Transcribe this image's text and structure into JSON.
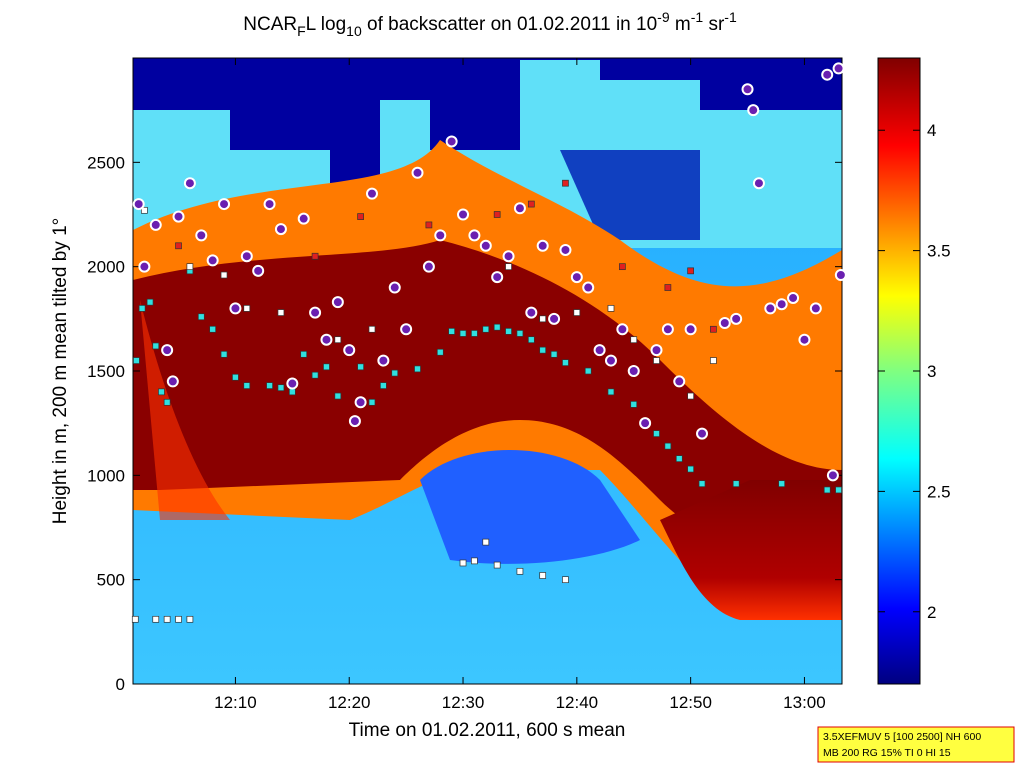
{
  "chart_data": {
    "type": "scatter",
    "title_parts": [
      "NCAR",
      "F",
      "L log",
      "10",
      " of backscatter on 01.02.2011 in 10",
      "-9",
      " m",
      "-1",
      " sr",
      "-1"
    ],
    "xlabel": "Time on 01.02.2011, 600 s mean",
    "ylabel": "Height in m, 200 m mean tilted by 1°",
    "xlim": [
      1,
      63.3
    ],
    "xticks": [
      {
        "value": 10,
        "label": "12:10"
      },
      {
        "value": 20,
        "label": "12:20"
      },
      {
        "value": 30,
        "label": "12:30"
      },
      {
        "value": 40,
        "label": "12:40"
      },
      {
        "value": 50,
        "label": "12:50"
      },
      {
        "value": 60,
        "label": "13:00"
      }
    ],
    "ylim": [
      0,
      3000
    ],
    "yticks": [
      0,
      500,
      1000,
      1500,
      2000,
      2500
    ],
    "colorbar": {
      "lim": [
        1.7,
        4.3
      ],
      "ticks": [
        2,
        2.5,
        3,
        3.5,
        4
      ]
    },
    "info": [
      "3.5XEFMUV 5 [100 2500] NH 600",
      "MB 200 RG 15% TI 0 HI 15"
    ],
    "series": [
      {
        "color": "#30e0e0",
        "marker": "square",
        "x": [
          1.3,
          1.8,
          2.5,
          3,
          3.5,
          4,
          6,
          7,
          8,
          9,
          10,
          11,
          13,
          14,
          15,
          16,
          17,
          18,
          19,
          21,
          22,
          23,
          24,
          26,
          28,
          29,
          30,
          31,
          32,
          33,
          34,
          35,
          36,
          37,
          38,
          39,
          41,
          43,
          45,
          47,
          48,
          49,
          50,
          51,
          54,
          58,
          62,
          63
        ],
        "values": [
          1550,
          1800,
          1830,
          1620,
          1400,
          1350,
          1980,
          1760,
          1700,
          1580,
          1470,
          1430,
          1430,
          1420,
          1400,
          1580,
          1480,
          1520,
          1380,
          1520,
          1350,
          1430,
          1490,
          1510,
          1590,
          1690,
          1680,
          1680,
          1700,
          1710,
          1690,
          1680,
          1650,
          1600,
          1580,
          1540,
          1500,
          1400,
          1340,
          1200,
          1140,
          1080,
          1030,
          960,
          960,
          960,
          930,
          930
        ]
      },
      {
        "color": "#ffffff",
        "marker": "square",
        "x": [
          1.2,
          3,
          4,
          5,
          6,
          30,
          31,
          32,
          33,
          35,
          37,
          39
        ],
        "values": [
          310,
          310,
          310,
          310,
          310,
          580,
          590,
          680,
          570,
          540,
          520,
          500
        ]
      },
      {
        "color": "#ffffff",
        "marker": "square",
        "x": [
          2,
          6,
          9,
          11,
          14,
          19,
          22,
          34,
          37,
          40,
          43,
          45,
          47,
          49,
          50,
          52
        ],
        "values": [
          2270,
          2000,
          1960,
          1800,
          1780,
          1650,
          1700,
          2000,
          1750,
          1780,
          1800,
          1650,
          1550,
          1450,
          1380,
          1550
        ]
      },
      {
        "color": "#e02020",
        "marker": "square",
        "x": [
          5,
          17,
          21,
          27,
          33,
          36,
          39,
          44,
          48,
          50,
          52
        ],
        "values": [
          2100,
          2050,
          2240,
          2200,
          2250,
          2300,
          2400,
          2000,
          1900,
          1980,
          1700
        ]
      },
      {
        "color": "#6a1fb0",
        "marker": "circle",
        "x": [
          1.5,
          2,
          3,
          4,
          4.5,
          5,
          6,
          7,
          8,
          9,
          10,
          11,
          12,
          13,
          14,
          15,
          16,
          17,
          18,
          19,
          20,
          20.5,
          21,
          22,
          23,
          24,
          25,
          26,
          27,
          28,
          29,
          30,
          31,
          32,
          33,
          34,
          35,
          36,
          37,
          38,
          39,
          40,
          41,
          42,
          43,
          44,
          45,
          46,
          47,
          48,
          49,
          50,
          51,
          53,
          54,
          55,
          55.5,
          56,
          57,
          58,
          59,
          60,
          61,
          62,
          62.5,
          63,
          63.2
        ],
        "values": [
          2300,
          2000,
          2200,
          1600,
          1450,
          2240,
          2400,
          2150,
          2030,
          2300,
          1800,
          2050,
          1980,
          2300,
          2180,
          1440,
          2230,
          1780,
          1650,
          1830,
          1600,
          1260,
          1350,
          2350,
          1550,
          1900,
          1700,
          2450,
          2000,
          2150,
          2600,
          2250,
          2150,
          2100,
          1950,
          2050,
          2280,
          1780,
          2100,
          1750,
          2080,
          1950,
          1900,
          1600,
          1550,
          1700,
          1500,
          1250,
          1600,
          1700,
          1450,
          1700,
          1200,
          1730,
          1750,
          2850,
          2750,
          2400,
          1800,
          1820,
          1850,
          1650,
          1800,
          2920,
          1000,
          2950,
          1960
        ]
      }
    ]
  }
}
